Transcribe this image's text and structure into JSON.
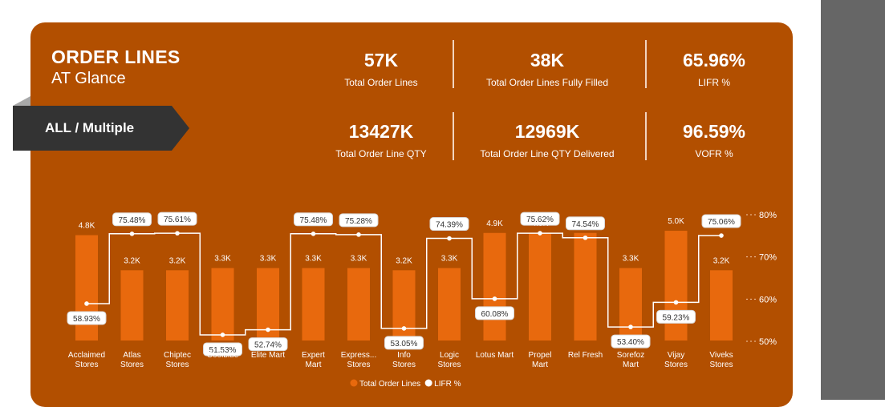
{
  "header": {
    "title": "ORDER LINES",
    "subtitle": "AT Glance"
  },
  "filter": {
    "label": "ALL / Multiple"
  },
  "kpis": [
    {
      "value": "57K",
      "label": "Total Order Lines"
    },
    {
      "value": "38K",
      "label": "Total  Order Lines Fully Filled"
    },
    {
      "value": "65.96%",
      "label": "LIFR %"
    },
    {
      "value": "13427K",
      "label": "Total Order Line QTY"
    },
    {
      "value": "12969K",
      "label": "Total Order Line QTY Delivered"
    },
    {
      "value": "96.59%",
      "label": "VOFR %"
    }
  ],
  "colors": {
    "card": "#b24f00",
    "bar": "#e8690d",
    "line": "#ffffff",
    "side_panel": "#666666",
    "filter_tab": "#333333"
  },
  "chart_data": {
    "type": "bar",
    "categories": [
      [
        "Acclaimed",
        "Stores"
      ],
      [
        "Atlas",
        "Stores"
      ],
      [
        "Chiptec",
        "Stores"
      ],
      [
        "Coolblue"
      ],
      [
        "Elite Mart"
      ],
      [
        "Expert",
        "Mart"
      ],
      [
        "Express...",
        "Stores"
      ],
      [
        "Info",
        "Stores"
      ],
      [
        "Logic",
        "Stores"
      ],
      [
        "Lotus Mart"
      ],
      [
        "Propel",
        "Mart"
      ],
      [
        "Rel Fresh"
      ],
      [
        "Sorefoz",
        "Mart"
      ],
      [
        "Vijay",
        "Stores"
      ],
      [
        "Viveks",
        "Stores"
      ]
    ],
    "series": [
      {
        "name": "Total Order Lines",
        "type": "bar",
        "axis": "left",
        "values": [
          4.8,
          3.2,
          3.2,
          3.3,
          3.3,
          3.3,
          3.3,
          3.2,
          3.3,
          4.9,
          4.9,
          4.9,
          3.3,
          5.0,
          3.2
        ],
        "labels": [
          "4.8K",
          "3.2K",
          "3.2K",
          "3.3K",
          "3.3K",
          "3.3K",
          "3.3K",
          "3.2K",
          "3.3K",
          "4.9K",
          "4.9K",
          "4.9K",
          "3.3K",
          "5.0K",
          "3.2K"
        ]
      },
      {
        "name": "LIFR %",
        "type": "step-line",
        "axis": "right",
        "values": [
          58.93,
          75.48,
          75.61,
          51.53,
          52.74,
          75.48,
          75.28,
          53.05,
          74.39,
          60.08,
          75.62,
          74.54,
          53.4,
          59.23,
          75.06
        ],
        "labels": [
          "58.93%",
          "75.48%",
          "75.61%",
          "51.53%",
          "52.74%",
          "75.48%",
          "75.28%",
          "53.05%",
          "74.39%",
          "60.08%",
          "75.62%",
          "74.54%",
          "53.40%",
          "59.23%",
          "75.06%"
        ]
      }
    ],
    "y2_ticks": [
      "80%",
      "70%",
      "60%",
      "50%"
    ],
    "y2lim": [
      50,
      80
    ],
    "ylim": [
      0,
      5.3
    ],
    "legend": [
      {
        "label": "Total Order Lines",
        "color": "#e8690d"
      },
      {
        "label": "LIFR %",
        "color": "#ffffff"
      }
    ],
    "legend_position": "bottom"
  }
}
